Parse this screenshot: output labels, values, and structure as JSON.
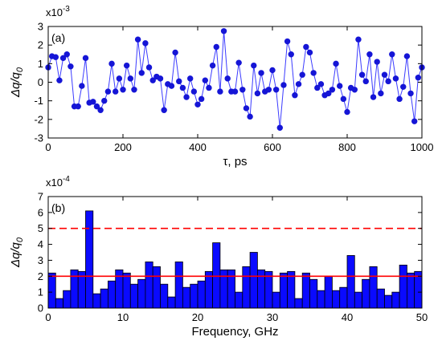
{
  "chart_data": [
    {
      "type": "line",
      "panel_label": "(a)",
      "scale_base": "x10",
      "scale_exp": "-3",
      "xlabel": "τ, ps",
      "ylabel_main": "Δq/q",
      "ylabel_sub": "0",
      "xlim": [
        0,
        1000
      ],
      "ylim": [
        -3,
        3
      ],
      "xticks": [
        0,
        200,
        400,
        600,
        800,
        1000
      ],
      "yticks": [
        -3,
        -2,
        -1,
        0,
        1,
        2,
        3
      ],
      "marker_color": "#1515d6",
      "line_color": "#3b3bff",
      "grid": false,
      "x": [
        0,
        10,
        20,
        30,
        40,
        50,
        60,
        70,
        80,
        90,
        100,
        110,
        120,
        130,
        140,
        150,
        160,
        170,
        180,
        190,
        200,
        210,
        220,
        230,
        240,
        250,
        260,
        270,
        280,
        290,
        300,
        310,
        320,
        330,
        340,
        350,
        360,
        370,
        380,
        390,
        400,
        410,
        420,
        430,
        440,
        450,
        460,
        470,
        480,
        490,
        500,
        510,
        520,
        530,
        540,
        550,
        560,
        570,
        580,
        590,
        600,
        610,
        620,
        630,
        640,
        650,
        660,
        670,
        680,
        690,
        700,
        710,
        720,
        730,
        740,
        750,
        760,
        770,
        780,
        790,
        800,
        810,
        820,
        830,
        840,
        850,
        860,
        870,
        880,
        890,
        900,
        910,
        920,
        930,
        940,
        950,
        960,
        970,
        980,
        990,
        1000
      ],
      "y": [
        0.8,
        1.4,
        1.35,
        0.1,
        1.3,
        1.5,
        0.85,
        -1.3,
        -1.3,
        -0.2,
        1.3,
        -1.1,
        -1.05,
        -1.3,
        -1.5,
        -1.0,
        -0.5,
        1.0,
        -0.5,
        0.2,
        -0.4,
        0.9,
        0.2,
        -0.4,
        2.3,
        0.5,
        2.1,
        0.8,
        0.1,
        0.3,
        0.2,
        -1.5,
        -0.1,
        -0.2,
        1.6,
        0.05,
        -0.3,
        -0.8,
        0.2,
        -0.5,
        -1.2,
        -0.9,
        0.1,
        -0.3,
        0.9,
        1.9,
        -0.5,
        2.75,
        0.2,
        -0.5,
        -0.5,
        1.05,
        -0.4,
        -1.4,
        -1.85,
        0.9,
        -0.6,
        0.5,
        -0.5,
        -0.4,
        0.65,
        -0.4,
        -2.45,
        -0.15,
        2.2,
        1.5,
        -0.7,
        -0.1,
        0.4,
        1.9,
        1.6,
        0.5,
        -0.3,
        -0.1,
        -0.7,
        -0.6,
        -0.4,
        1.0,
        -0.2,
        -0.9,
        -1.6,
        -0.3,
        -0.4,
        2.3,
        0.4,
        0.05,
        1.5,
        -0.8,
        1.1,
        -0.6,
        0.4,
        0.05,
        1.5,
        0.2,
        -0.9,
        -0.25,
        1.4,
        -0.6,
        -2.1,
        0.25,
        0.8
      ]
    },
    {
      "type": "bar",
      "panel_label": "(b)",
      "scale_base": "x10",
      "scale_exp": "-4",
      "xlabel": "Frequency, GHz",
      "ylabel_main": "Δq/q",
      "ylabel_sub": "0",
      "xlim": [
        0,
        50
      ],
      "ylim": [
        0,
        7
      ],
      "xticks": [
        0,
        10,
        20,
        30,
        40,
        50
      ],
      "yticks": [
        0,
        1,
        2,
        3,
        4,
        5,
        6,
        7
      ],
      "bar_color": "#0a0aff",
      "grid": false,
      "bin_width": 1,
      "x": [
        0.5,
        1.5,
        2.5,
        3.5,
        4.5,
        5.5,
        6.5,
        7.5,
        8.5,
        9.5,
        10.5,
        11.5,
        12.5,
        13.5,
        14.5,
        15.5,
        16.5,
        17.5,
        18.5,
        19.5,
        20.5,
        21.5,
        22.5,
        23.5,
        24.5,
        25.5,
        26.5,
        27.5,
        28.5,
        29.5,
        30.5,
        31.5,
        32.5,
        33.5,
        34.5,
        35.5,
        36.5,
        37.5,
        38.5,
        39.5,
        40.5,
        41.5,
        42.5,
        43.5,
        44.5,
        45.5,
        46.5,
        47.5,
        48.5,
        49.5
      ],
      "values": [
        2.2,
        0.6,
        1.1,
        2.4,
        2.3,
        6.1,
        0.9,
        1.2,
        1.7,
        2.4,
        2.2,
        1.5,
        1.8,
        2.9,
        2.6,
        1.5,
        0.7,
        2.9,
        1.3,
        1.5,
        1.7,
        2.3,
        4.1,
        2.4,
        2.4,
        1.0,
        2.6,
        3.5,
        2.4,
        2.3,
        1.0,
        2.2,
        2.3,
        0.6,
        2.2,
        1.8,
        1.1,
        2.0,
        1.1,
        1.3,
        3.3,
        1.0,
        1.8,
        2.6,
        1.2,
        0.8,
        1.0,
        2.7,
        2.2,
        2.3
      ],
      "ref_lines": [
        {
          "y": 2,
          "color": "#ff0000",
          "style": "solid"
        },
        {
          "y": 5,
          "color": "#ff0000",
          "style": "dashed"
        }
      ]
    }
  ]
}
